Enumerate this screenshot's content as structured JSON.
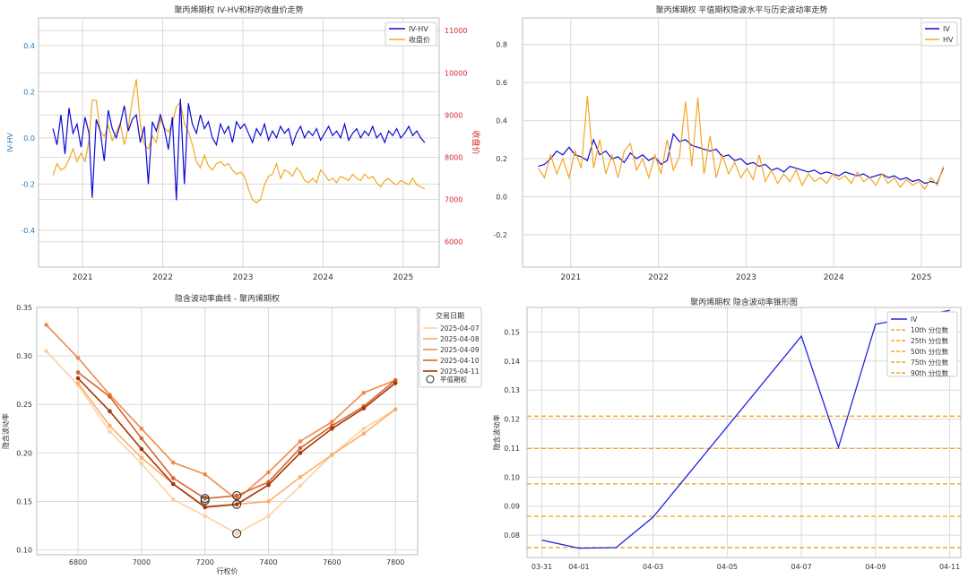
{
  "chart_data": [
    {
      "type": "line",
      "title": "聚丙烯期权 IV-HV和标的收盘价走势",
      "ylabel": "IV-HV",
      "ylabel_right": "收盘价",
      "x_ticks": [
        "2021",
        "2022",
        "2023",
        "2024",
        "2025"
      ],
      "y_ticks": [
        "-0.4",
        "-0.2",
        "0.0",
        "0.2",
        "0.4"
      ],
      "y2_ticks": [
        "6000",
        "7000",
        "8000",
        "9000",
        "10000",
        "11000"
      ],
      "xlim": [
        2020.45,
        2025.45
      ],
      "ylim": [
        -0.56,
        0.52
      ],
      "y2lim": [
        5400,
        11300
      ],
      "colors": {
        "iv_hv": "#0b0bd6",
        "close": "#f5a623",
        "right_axis": "#d62728",
        "left_axis": "#1f77b4"
      },
      "legend": {
        "position": "top-right",
        "entries": [
          "IV-HV",
          "收盘价"
        ]
      },
      "series": [
        {
          "name": "IV-HV",
          "axis": "left",
          "x": [
            2020.63,
            2020.68,
            2020.73,
            2020.78,
            2020.83,
            2020.88,
            2020.93,
            2020.98,
            2021.03,
            2021.08,
            2021.12,
            2021.17,
            2021.22,
            2021.27,
            2021.32,
            2021.37,
            2021.42,
            2021.47,
            2021.52,
            2021.57,
            2021.62,
            2021.67,
            2021.72,
            2021.77,
            2021.82,
            2021.87,
            2021.92,
            2021.97,
            2022.02,
            2022.07,
            2022.12,
            2022.17,
            2022.22,
            2022.27,
            2022.32,
            2022.37,
            2022.42,
            2022.47,
            2022.52,
            2022.57,
            2022.62,
            2022.67,
            2022.72,
            2022.77,
            2022.82,
            2022.87,
            2022.92,
            2022.97,
            2023.02,
            2023.07,
            2023.12,
            2023.17,
            2023.22,
            2023.27,
            2023.32,
            2023.37,
            2023.42,
            2023.47,
            2023.52,
            2023.57,
            2023.62,
            2023.67,
            2023.72,
            2023.77,
            2023.82,
            2023.87,
            2023.92,
            2023.97,
            2024.02,
            2024.07,
            2024.12,
            2024.17,
            2024.22,
            2024.27,
            2024.32,
            2024.37,
            2024.42,
            2024.47,
            2024.52,
            2024.57,
            2024.62,
            2024.67,
            2024.72,
            2024.77,
            2024.82,
            2024.87,
            2024.92,
            2024.97,
            2025.02,
            2025.07,
            2025.12,
            2025.17,
            2025.22,
            2025.27
          ],
          "values": [
            0.04,
            -0.03,
            0.1,
            -0.07,
            0.13,
            0.02,
            0.06,
            -0.04,
            0.09,
            0.02,
            -0.26,
            0.08,
            0.03,
            -0.1,
            0.12,
            0.04,
            0.0,
            0.06,
            0.14,
            0.03,
            0.08,
            0.1,
            -0.02,
            0.05,
            -0.2,
            0.07,
            0.03,
            0.1,
            0.04,
            -0.05,
            0.09,
            -0.27,
            0.17,
            -0.2,
            0.15,
            0.06,
            0.02,
            0.1,
            0.04,
            0.07,
            0.0,
            -0.03,
            0.06,
            0.02,
            0.05,
            -0.02,
            0.07,
            0.04,
            0.06,
            0.02,
            -0.02,
            0.04,
            0.01,
            0.06,
            -0.01,
            0.03,
            0.0,
            0.05,
            0.02,
            0.04,
            -0.03,
            0.02,
            0.05,
            0.0,
            0.03,
            0.01,
            0.04,
            -0.01,
            0.02,
            0.05,
            0.01,
            0.03,
            0.0,
            0.06,
            -0.01,
            0.02,
            0.04,
            0.0,
            0.03,
            0.01,
            0.05,
            0.0,
            0.02,
            -0.02,
            0.03,
            0.01,
            0.04,
            0.0,
            0.02,
            0.05,
            0.01,
            0.03,
            0.0,
            -0.02
          ]
        },
        {
          "name": "收盘价",
          "axis": "right",
          "x": [
            2020.63,
            2020.68,
            2020.73,
            2020.78,
            2020.83,
            2020.88,
            2020.93,
            2020.98,
            2021.03,
            2021.08,
            2021.12,
            2021.17,
            2021.22,
            2021.27,
            2021.32,
            2021.37,
            2021.42,
            2021.47,
            2021.52,
            2021.57,
            2021.62,
            2021.67,
            2021.72,
            2021.77,
            2021.82,
            2021.87,
            2021.92,
            2021.97,
            2022.02,
            2022.07,
            2022.12,
            2022.17,
            2022.22,
            2022.27,
            2022.32,
            2022.37,
            2022.42,
            2022.47,
            2022.52,
            2022.57,
            2022.62,
            2022.67,
            2022.72,
            2022.77,
            2022.82,
            2022.87,
            2022.92,
            2022.97,
            2023.02,
            2023.07,
            2023.12,
            2023.17,
            2023.22,
            2023.27,
            2023.32,
            2023.37,
            2023.42,
            2023.47,
            2023.52,
            2023.57,
            2023.62,
            2023.67,
            2023.72,
            2023.77,
            2023.82,
            2023.87,
            2023.92,
            2023.97,
            2024.02,
            2024.07,
            2024.12,
            2024.17,
            2024.22,
            2024.27,
            2024.32,
            2024.37,
            2024.42,
            2024.47,
            2024.52,
            2024.57,
            2024.62,
            2024.67,
            2024.72,
            2024.77,
            2024.82,
            2024.87,
            2024.92,
            2024.97,
            2025.02,
            2025.07,
            2025.12,
            2025.17,
            2025.22,
            2025.27
          ],
          "values": [
            7570,
            7850,
            7700,
            7760,
            7950,
            8200,
            7900,
            8100,
            7900,
            8400,
            9350,
            9350,
            8600,
            8500,
            8750,
            8400,
            8600,
            8800,
            8300,
            8700,
            9350,
            9850,
            8800,
            8300,
            8200,
            8500,
            8350,
            8900,
            8700,
            8600,
            8800,
            9200,
            9300,
            8800,
            8600,
            8300,
            7900,
            7750,
            8050,
            7800,
            7700,
            7850,
            7900,
            7800,
            7850,
            7700,
            7600,
            7650,
            7550,
            7250,
            7000,
            6920,
            7000,
            7350,
            7550,
            7600,
            7850,
            7500,
            7700,
            7650,
            7550,
            7750,
            7650,
            7450,
            7400,
            7500,
            7400,
            7700,
            7600,
            7450,
            7500,
            7400,
            7550,
            7500,
            7450,
            7600,
            7500,
            7450,
            7600,
            7500,
            7550,
            7400,
            7300,
            7450,
            7500,
            7400,
            7350,
            7450,
            7400,
            7350,
            7500,
            7350,
            7300,
            7250
          ]
        }
      ]
    },
    {
      "type": "line",
      "title": "聚丙烯期权 平值期权隐波水平与历史波动率走势",
      "x_ticks": [
        "2021",
        "2022",
        "2023",
        "2024",
        "2025"
      ],
      "y_ticks": [
        "-0.2",
        "0.0",
        "0.2",
        "0.4",
        "0.6",
        "0.8"
      ],
      "xlim": [
        2020.45,
        2025.45
      ],
      "ylim": [
        -0.37,
        0.94
      ],
      "colors": {
        "iv": "#0b0bd6",
        "hv": "#f5a623"
      },
      "legend": {
        "position": "top-right",
        "entries": [
          "IV",
          "HV"
        ]
      },
      "series": [
        {
          "name": "IV",
          "x": [
            2020.63,
            2020.7,
            2020.77,
            2020.84,
            2020.91,
            2020.98,
            2021.05,
            2021.12,
            2021.19,
            2021.26,
            2021.33,
            2021.4,
            2021.47,
            2021.54,
            2021.61,
            2021.68,
            2021.75,
            2021.82,
            2021.89,
            2021.96,
            2022.03,
            2022.1,
            2022.17,
            2022.24,
            2022.31,
            2022.38,
            2022.45,
            2022.52,
            2022.59,
            2022.66,
            2022.73,
            2022.8,
            2022.87,
            2022.94,
            2023.01,
            2023.08,
            2023.15,
            2023.22,
            2023.29,
            2023.36,
            2023.43,
            2023.5,
            2023.57,
            2023.64,
            2023.71,
            2023.78,
            2023.85,
            2023.92,
            2023.99,
            2024.06,
            2024.13,
            2024.2,
            2024.27,
            2024.34,
            2024.41,
            2024.48,
            2024.55,
            2024.62,
            2024.69,
            2024.76,
            2024.83,
            2024.9,
            2024.97,
            2025.04,
            2025.11,
            2025.18,
            2025.25
          ],
          "values": [
            0.16,
            0.17,
            0.2,
            0.24,
            0.22,
            0.26,
            0.22,
            0.21,
            0.19,
            0.3,
            0.22,
            0.24,
            0.2,
            0.21,
            0.18,
            0.23,
            0.2,
            0.22,
            0.19,
            0.21,
            0.17,
            0.19,
            0.33,
            0.29,
            0.3,
            0.27,
            0.26,
            0.25,
            0.24,
            0.25,
            0.21,
            0.22,
            0.19,
            0.2,
            0.17,
            0.18,
            0.16,
            0.17,
            0.14,
            0.15,
            0.13,
            0.16,
            0.15,
            0.14,
            0.13,
            0.14,
            0.12,
            0.13,
            0.12,
            0.11,
            0.13,
            0.12,
            0.11,
            0.12,
            0.1,
            0.11,
            0.12,
            0.1,
            0.11,
            0.09,
            0.1,
            0.08,
            0.09,
            0.07,
            0.08,
            0.07,
            0.15
          ]
        },
        {
          "name": "HV",
          "x": [
            2020.63,
            2020.7,
            2020.77,
            2020.84,
            2020.91,
            2020.98,
            2021.05,
            2021.12,
            2021.19,
            2021.26,
            2021.33,
            2021.4,
            2021.47,
            2021.54,
            2021.61,
            2021.68,
            2021.75,
            2021.82,
            2021.89,
            2021.96,
            2022.03,
            2022.1,
            2022.17,
            2022.24,
            2022.31,
            2022.38,
            2022.45,
            2022.52,
            2022.59,
            2022.66,
            2022.73,
            2022.8,
            2022.87,
            2022.94,
            2023.01,
            2023.08,
            2023.15,
            2023.22,
            2023.29,
            2023.36,
            2023.43,
            2023.5,
            2023.57,
            2023.64,
            2023.71,
            2023.78,
            2023.85,
            2023.92,
            2023.99,
            2024.06,
            2024.13,
            2024.2,
            2024.27,
            2024.34,
            2024.41,
            2024.48,
            2024.55,
            2024.62,
            2024.69,
            2024.76,
            2024.83,
            2024.9,
            2024.97,
            2025.04,
            2025.11,
            2025.18,
            2025.25
          ],
          "values": [
            0.15,
            0.1,
            0.22,
            0.12,
            0.2,
            0.1,
            0.24,
            0.15,
            0.53,
            0.15,
            0.3,
            0.12,
            0.22,
            0.1,
            0.24,
            0.28,
            0.14,
            0.2,
            0.1,
            0.22,
            0.12,
            0.3,
            0.14,
            0.21,
            0.5,
            0.16,
            0.52,
            0.12,
            0.32,
            0.1,
            0.22,
            0.12,
            0.18,
            0.1,
            0.15,
            0.09,
            0.22,
            0.08,
            0.14,
            0.07,
            0.12,
            0.08,
            0.14,
            0.06,
            0.12,
            0.08,
            0.1,
            0.07,
            0.12,
            0.09,
            0.11,
            0.07,
            0.13,
            0.08,
            0.1,
            0.06,
            0.12,
            0.07,
            0.1,
            0.05,
            0.09,
            0.06,
            0.08,
            0.04,
            0.1,
            0.06,
            0.16
          ]
        }
      ]
    },
    {
      "type": "line",
      "title": "隐含波动率曲线 - 聚丙烯期权",
      "xlabel": "行权价",
      "ylabel": "隐含波动率",
      "x_ticks": [
        "6800",
        "7000",
        "7200",
        "7400",
        "7600",
        "7800"
      ],
      "y_ticks": [
        "0.10",
        "0.15",
        "0.20",
        "0.25",
        "0.30",
        "0.35"
      ],
      "xlim": [
        6670,
        7870
      ],
      "ylim": [
        0.095,
        0.35
      ],
      "legend": {
        "position": "top-right",
        "title": "交易日期",
        "entries": [
          "2025-04-07",
          "2025-04-08",
          "2025-04-09",
          "2025-04-10",
          "2025-04-11"
        ],
        "marker_label": "平值期权"
      },
      "x": [
        6700,
        6800,
        6900,
        7000,
        7100,
        7200,
        7300,
        7400,
        7500,
        7600,
        7700,
        7800
      ],
      "series": [
        {
          "name": "2025-04-07",
          "color": "#fdd0a2",
          "values": [
            0.305,
            0.27,
            0.222,
            0.189,
            0.152,
            0.135,
            0.117,
            0.135,
            0.166,
            0.198,
            0.225,
            0.245
          ]
        },
        {
          "name": "2025-04-08",
          "color": "#fdae6b",
          "values": [
            null,
            0.272,
            0.228,
            0.195,
            0.168,
            0.145,
            0.147,
            0.15,
            0.175,
            0.198,
            0.22,
            0.245
          ]
        },
        {
          "name": "2025-04-09",
          "color": "#f08a4b",
          "values": [
            0.332,
            0.298,
            0.26,
            0.225,
            0.19,
            0.178,
            0.152,
            0.18,
            0.212,
            0.232,
            0.262,
            0.275
          ]
        },
        {
          "name": "2025-04-10",
          "color": "#d9622b",
          "values": [
            null,
            0.283,
            0.258,
            0.215,
            0.174,
            0.153,
            0.156,
            0.17,
            0.205,
            0.228,
            0.248,
            0.275
          ]
        },
        {
          "name": "2025-04-11",
          "color": "#a63603",
          "values": [
            null,
            0.277,
            0.243,
            0.204,
            0.168,
            0.144,
            0.147,
            0.167,
            0.2,
            0.225,
            0.246,
            0.272
          ]
        }
      ],
      "atm_markers": [
        {
          "x": 7200,
          "y": 0.153
        },
        {
          "x": 7200,
          "y": 0.151
        },
        {
          "x": 7300,
          "y": 0.156
        },
        {
          "x": 7300,
          "y": 0.147
        },
        {
          "x": 7300,
          "y": 0.117
        }
      ]
    },
    {
      "type": "line",
      "title": "聚丙烯期权 隐含波动率锥形图",
      "ylabel": "隐含波动率",
      "x_ticks": [
        "03-31",
        "04-01",
        "04-03",
        "04-05",
        "04-07",
        "04-09",
        "04-11"
      ],
      "y_ticks": [
        "0.08",
        "0.09",
        "0.10",
        "0.11",
        "0.12",
        "0.13",
        "0.14",
        "0.15"
      ],
      "xlim": [
        -0.4,
        11.3
      ],
      "ylim": [
        0.0723,
        0.1585
      ],
      "legend": {
        "position": "top-right",
        "entries": [
          "IV",
          "10th 分位数",
          "25th 分位数",
          "50th 分位数",
          "75th 分位数",
          "90th 分位数"
        ]
      },
      "colors": {
        "iv": "#2323e0",
        "quantile": "#f5a623"
      },
      "series": [
        {
          "name": "IV",
          "x": [
            0,
            1,
            2,
            3,
            7,
            8,
            9,
            11
          ],
          "values": [
            0.0783,
            0.0755,
            0.0757,
            0.0862,
            0.1486,
            0.1103,
            0.1527,
            0.1575
          ]
        }
      ],
      "quantiles": [
        {
          "name": "10th 分位数",
          "value": 0.0757
        },
        {
          "name": "25th 分位数",
          "value": 0.0865
        },
        {
          "name": "50th 分位数",
          "value": 0.0977
        },
        {
          "name": "75th 分位数",
          "value": 0.1099
        },
        {
          "name": "90th 分位数",
          "value": 0.121
        }
      ]
    }
  ]
}
